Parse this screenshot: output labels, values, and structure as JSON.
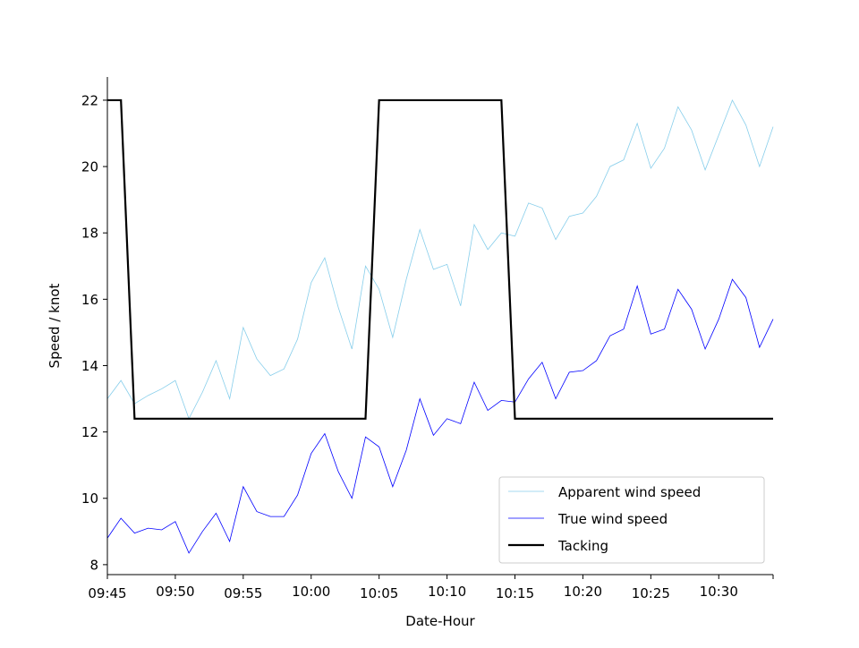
{
  "chart_data": {
    "type": "line",
    "xlabel": "Date-Hour",
    "ylabel": "Speed / knot",
    "xlim": [
      "09:45",
      "10:34"
    ],
    "ylim": [
      7.7,
      22.7
    ],
    "x_ticks": [
      "09:45",
      "09:50",
      "09:55",
      "10:00",
      "10:05",
      "10:10",
      "10:15",
      "10:20",
      "10:25",
      "10:30"
    ],
    "y_ticks": [
      8,
      10,
      12,
      14,
      16,
      18,
      20,
      22
    ],
    "grid": false,
    "legend_position": "lower right",
    "x": [
      "09:45",
      "09:46",
      "09:47",
      "09:48",
      "09:49",
      "09:50",
      "09:51",
      "09:52",
      "09:53",
      "09:54",
      "09:55",
      "09:56",
      "09:57",
      "09:58",
      "09:59",
      "10:00",
      "10:01",
      "10:02",
      "10:03",
      "10:04",
      "10:05",
      "10:06",
      "10:07",
      "10:08",
      "10:09",
      "10:10",
      "10:11",
      "10:12",
      "10:13",
      "10:14",
      "10:15",
      "10:16",
      "10:17",
      "10:18",
      "10:19",
      "10:20",
      "10:21",
      "10:22",
      "10:23",
      "10:24",
      "10:25",
      "10:26",
      "10:27",
      "10:28",
      "10:29",
      "10:30",
      "10:31",
      "10:32",
      "10:33",
      "10:34"
    ],
    "series": [
      {
        "name": "Apparent wind speed",
        "color": "#87ceeb",
        "values": [
          13.0,
          13.55,
          12.85,
          13.1,
          13.3,
          13.55,
          12.4,
          13.2,
          14.15,
          13.0,
          15.15,
          14.2,
          13.7,
          13.9,
          14.8,
          16.5,
          17.25,
          15.75,
          14.5,
          17.0,
          16.3,
          14.85,
          16.6,
          18.1,
          16.9,
          17.05,
          15.8,
          18.25,
          17.5,
          18.0,
          17.9,
          18.9,
          18.75,
          17.8,
          18.5,
          18.6,
          19.1,
          20.0,
          20.2,
          21.3,
          19.95,
          20.55,
          21.8,
          21.1,
          19.9,
          20.95,
          22.0,
          21.25,
          20.0,
          21.2
        ]
      },
      {
        "name": "True wind speed",
        "color": "#0000ff",
        "values": [
          8.8,
          9.4,
          8.95,
          9.1,
          9.05,
          9.3,
          8.35,
          9.0,
          9.55,
          8.7,
          10.35,
          9.6,
          9.45,
          9.45,
          10.1,
          11.35,
          11.95,
          10.8,
          10.0,
          11.85,
          11.55,
          10.35,
          11.45,
          13.0,
          11.9,
          12.4,
          12.25,
          13.5,
          12.65,
          12.95,
          12.9,
          13.6,
          14.1,
          13.0,
          13.8,
          13.85,
          14.15,
          14.9,
          15.1,
          16.4,
          14.95,
          15.1,
          16.3,
          15.7,
          14.5,
          15.4,
          16.6,
          16.05,
          14.55,
          15.4
        ]
      },
      {
        "name": "Tacking",
        "color": "#000000",
        "values": [
          22.0,
          22.0,
          12.4,
          12.4,
          12.4,
          12.4,
          12.4,
          12.4,
          12.4,
          12.4,
          12.4,
          12.4,
          12.4,
          12.4,
          12.4,
          12.4,
          12.4,
          12.4,
          12.4,
          12.4,
          22.0,
          22.0,
          22.0,
          22.0,
          22.0,
          22.0,
          22.0,
          22.0,
          22.0,
          22.0,
          12.4,
          12.4,
          12.4,
          12.4,
          12.4,
          12.4,
          12.4,
          12.4,
          12.4,
          12.4,
          12.4,
          12.4,
          12.4,
          12.4,
          12.4,
          12.4,
          12.4,
          12.4,
          12.4,
          12.4
        ]
      }
    ]
  }
}
